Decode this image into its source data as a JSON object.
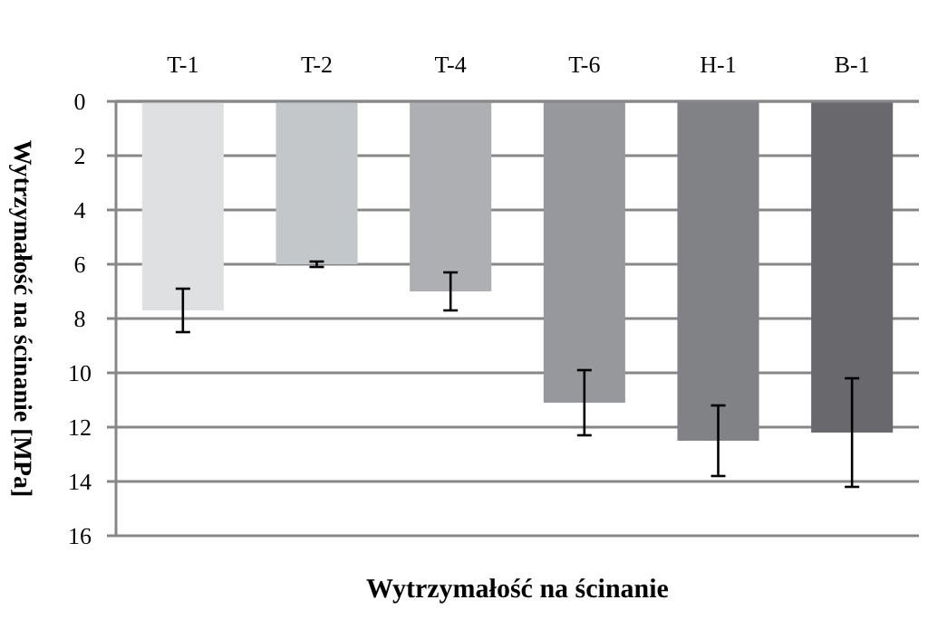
{
  "chart_data": {
    "type": "bar",
    "xlabel": "Wytrzymałość na ścinanie",
    "ylabel": "Wytrzymałość na ścinanie [MPa]",
    "categories": [
      "T-1",
      "T-2",
      "T-4",
      "T-6",
      "H-1",
      "B-1"
    ],
    "values": [
      7.7,
      6.0,
      7.0,
      11.1,
      12.5,
      12.2
    ],
    "errors": [
      0.8,
      0.1,
      0.7,
      1.2,
      1.3,
      2.0
    ],
    "colors": [
      "#dfe0e1",
      "#c4c7c9",
      "#aeafb2",
      "#97989c",
      "#818286",
      "#69696d"
    ],
    "ylim": [
      16,
      0
    ],
    "yticks": [
      0,
      2,
      4,
      6,
      8,
      10,
      12,
      14,
      16
    ],
    "grid": "y"
  }
}
